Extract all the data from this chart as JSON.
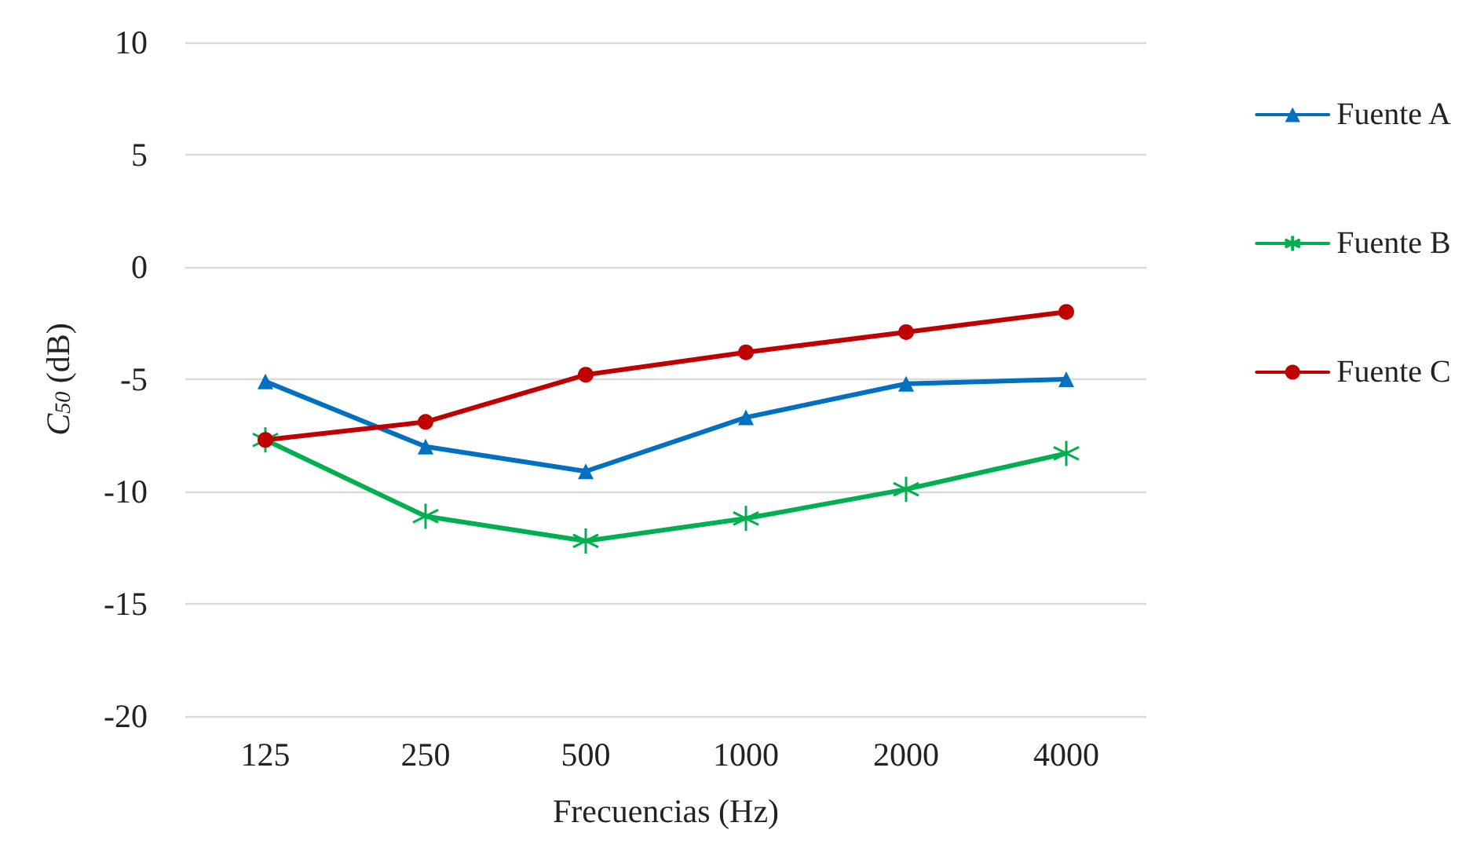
{
  "chart_data": {
    "type": "line",
    "xlabel": "Frecuencias (Hz)",
    "ylabel": "C$_{50}$ (dB)",
    "categories": [
      "125",
      "250",
      "500",
      "1000",
      "2000",
      "4000"
    ],
    "series": [
      {
        "name": "Fuente A",
        "color": "#0070c0",
        "marker": "triangle",
        "values": [
          -5.1,
          -8.0,
          -9.1,
          -6.7,
          -5.2,
          -5.0
        ]
      },
      {
        "name": "Fuente B",
        "color": "#00b050",
        "marker": "cross",
        "values": [
          -7.7,
          -11.1,
          -12.2,
          -11.2,
          -9.9,
          -8.3
        ]
      },
      {
        "name": "Fuente C",
        "color": "#c00000",
        "marker": "circle",
        "values": [
          -7.7,
          -6.9,
          -4.8,
          -3.8,
          -2.9,
          -2.0
        ]
      }
    ],
    "ylim": [
      -20,
      10
    ],
    "yticks": [
      -20,
      -15,
      -10,
      -5,
      0,
      5,
      10
    ],
    "grid": "y",
    "legend": "right",
    "line_style": "solid"
  }
}
